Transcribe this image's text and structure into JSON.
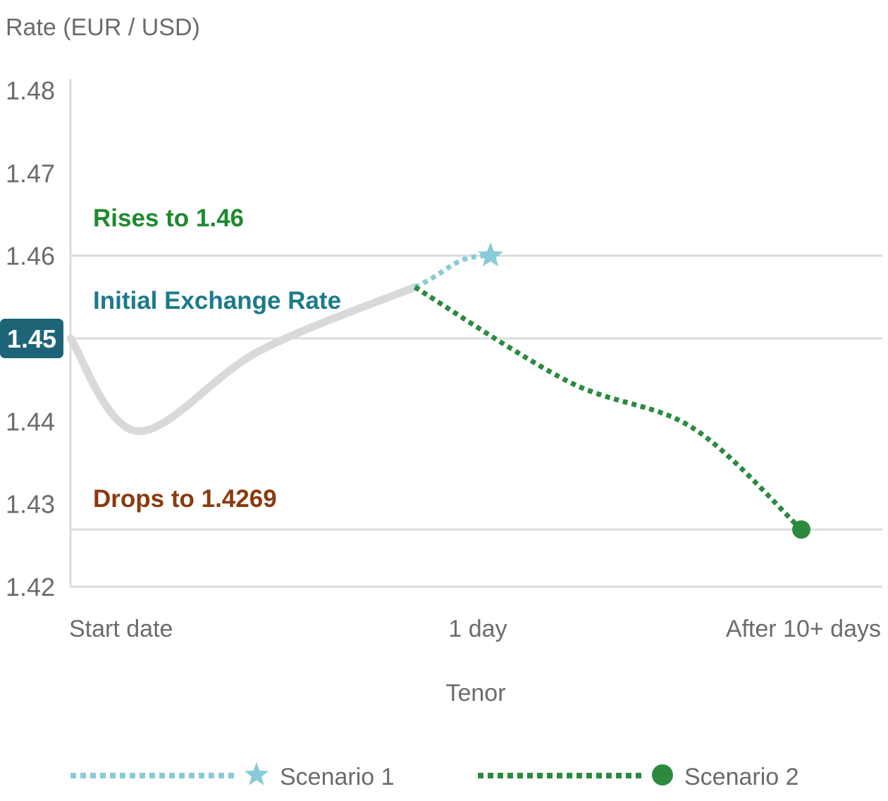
{
  "chart_data": {
    "type": "line",
    "ylabel": "Rate (EUR / USD)",
    "xlabel": "Tenor",
    "ylim": [
      1.42,
      1.48
    ],
    "y_ticks": [
      "1.48",
      "1.47",
      "1.46",
      "1.45",
      "1.44",
      "1.43",
      "1.42"
    ],
    "highlighted_tick": "1.45",
    "x_ticks": [
      "Start date",
      "1 day",
      "After 10+ days"
    ],
    "grid": "horizontal at 1.46, 1.45, 1.4269",
    "annotations": {
      "rises": "Rises to 1.46",
      "initial": "Initial Exchange Rate",
      "drops": "Drops to 1.4269"
    },
    "colors": {
      "history": "#d9d9d9",
      "scenario1": "#88cbd8",
      "scenario2": "#2b8a3e",
      "rises_text": "#1e8a2e",
      "initial_text": "#1b7a8c",
      "drops_text": "#8a3a0e",
      "badge": "#1d6477",
      "grid": "#dcdcdc",
      "axis_text": "#6b6b6b"
    },
    "x_scale": [
      0,
      1,
      2
    ],
    "series": [
      {
        "key": "history",
        "style": "solid",
        "points": [
          [
            0.0,
            1.45
          ],
          [
            0.16,
            1.4388
          ],
          [
            0.45,
            1.4485
          ],
          [
            0.82,
            1.4562
          ]
        ]
      },
      {
        "key": "scenario1",
        "name": "Scenario 1",
        "style": "dotted",
        "marker": "star",
        "points": [
          [
            0.82,
            1.4562
          ],
          [
            1.0,
            1.46
          ]
        ]
      },
      {
        "key": "scenario2",
        "name": "Scenario 2",
        "style": "dotted",
        "marker": "circle",
        "points": [
          [
            0.82,
            1.4562
          ],
          [
            1.25,
            1.4448
          ],
          [
            1.65,
            1.4392
          ],
          [
            2.0,
            1.4269
          ]
        ]
      }
    ],
    "legend": {
      "position": "bottom",
      "items": [
        {
          "label": "Scenario 1",
          "key": "scenario1"
        },
        {
          "label": "Scenario 2",
          "key": "scenario2"
        }
      ]
    }
  }
}
